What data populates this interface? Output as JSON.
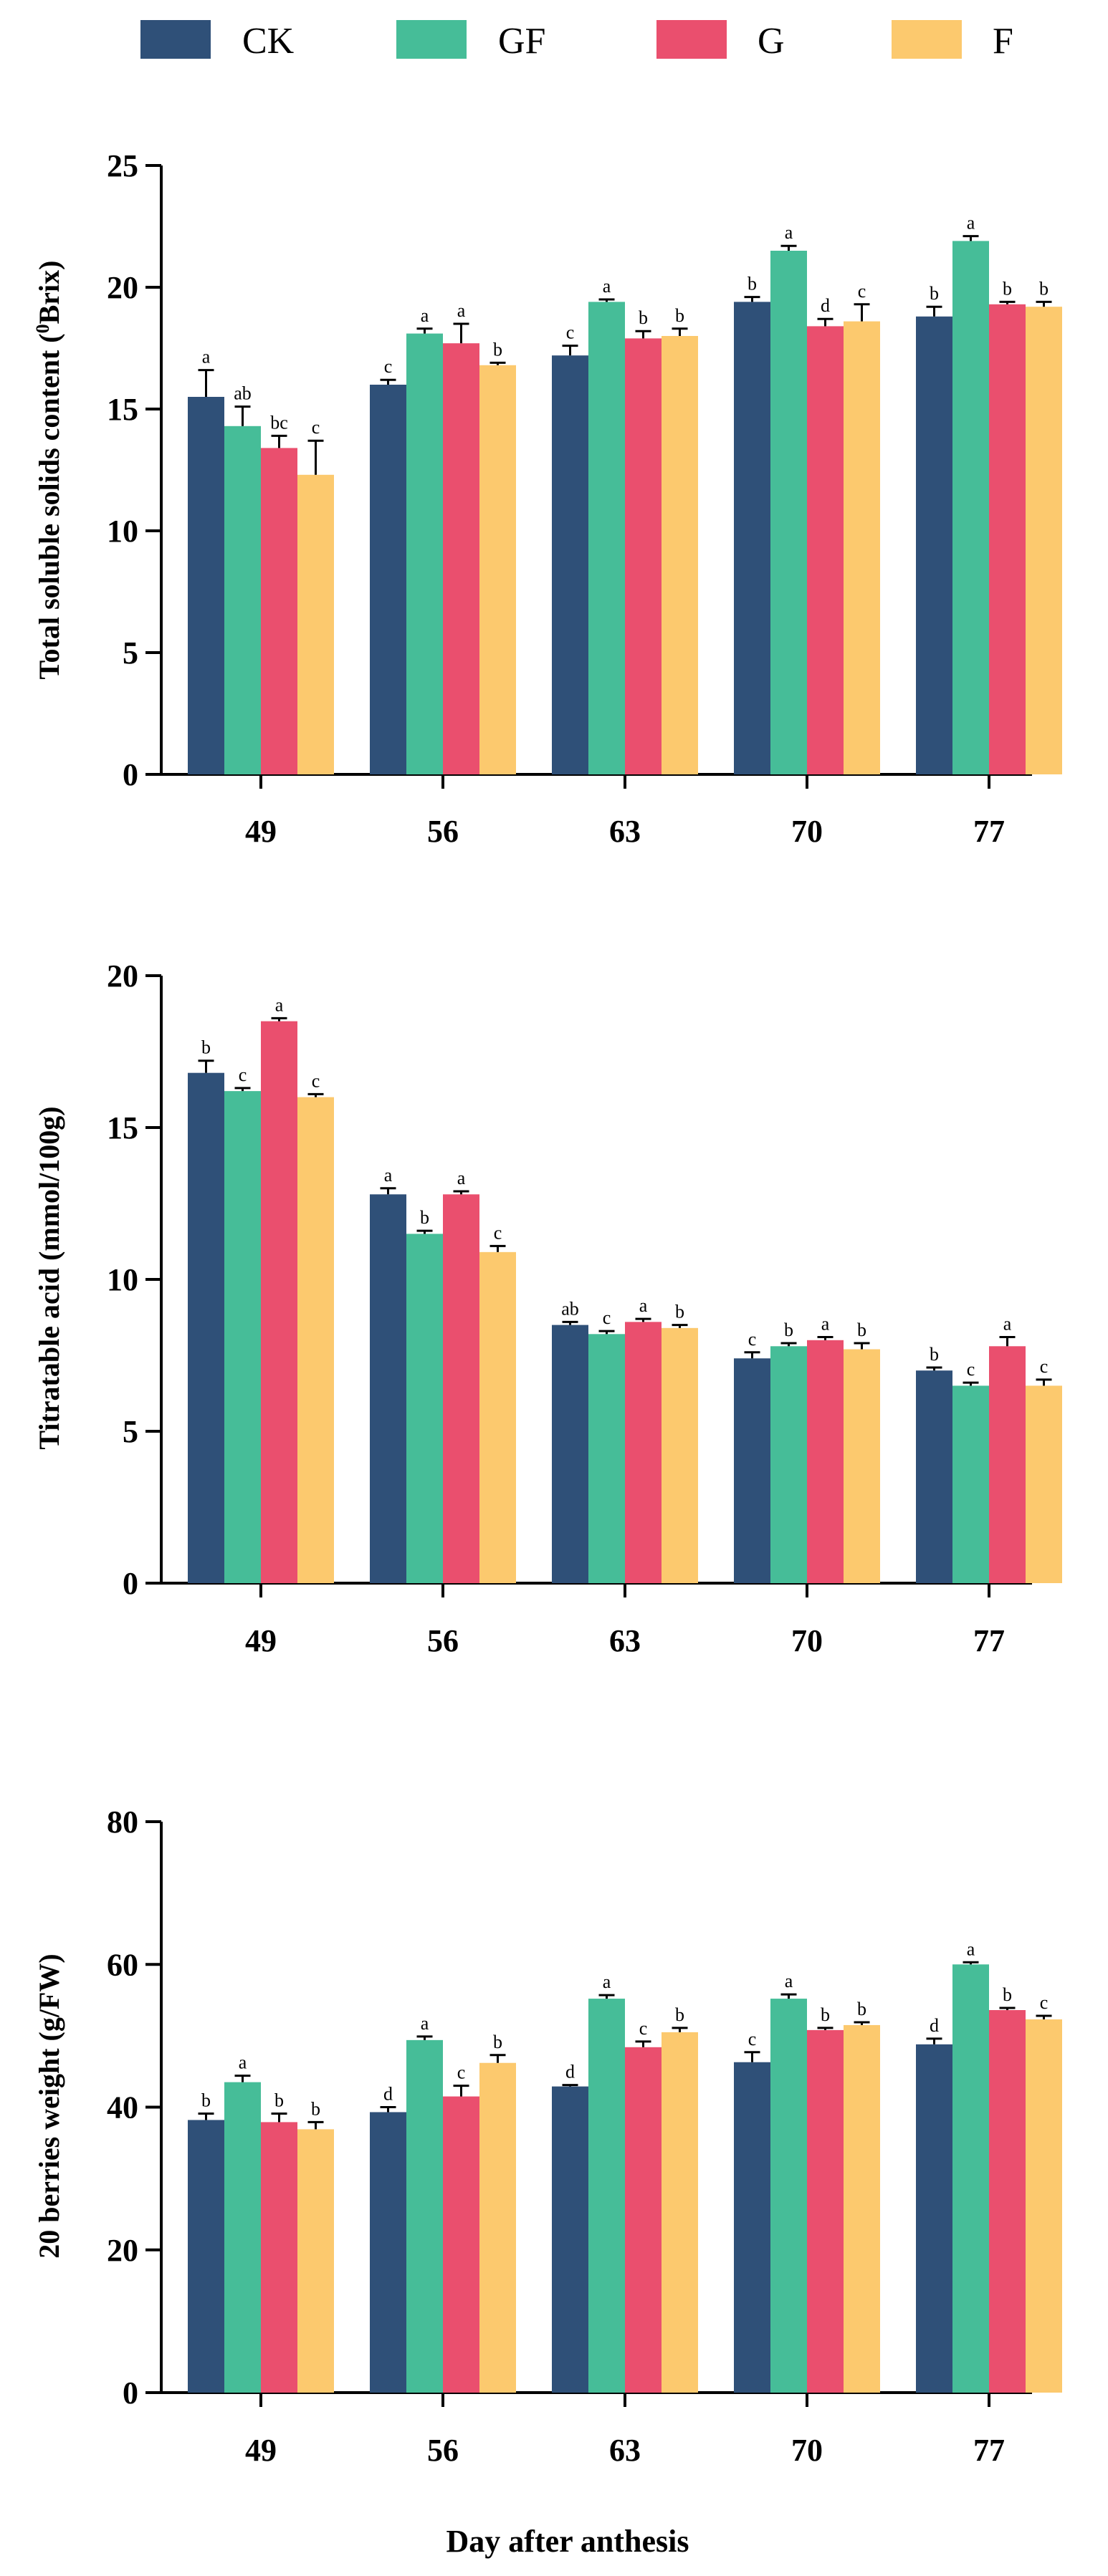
{
  "colors": {
    "CK": "#2f5078",
    "GF": "#46bd98",
    "G": "#ea4f6e",
    "F": "#fcc96e"
  },
  "legend": [
    "CK",
    "GF",
    "G",
    "F"
  ],
  "xlabel": "Day after anthesis",
  "chart_data": [
    {
      "type": "bar",
      "ylabel_pre": "Total soluble solids content (",
      "ylabel_sup": "0",
      "ylabel_post": "Brix)",
      "ylim": [
        0,
        25
      ],
      "yticks": [
        0,
        5,
        10,
        15,
        20,
        25
      ],
      "categories": [
        "49",
        "56",
        "63",
        "70",
        "77"
      ],
      "series": [
        {
          "name": "CK",
          "values": [
            15.5,
            16.0,
            17.2,
            19.4,
            18.8
          ],
          "errors": [
            1.1,
            0.2,
            0.4,
            0.2,
            0.4
          ],
          "labels": [
            "a",
            "c",
            "c",
            "b",
            "b"
          ]
        },
        {
          "name": "GF",
          "values": [
            14.3,
            18.1,
            19.4,
            21.5,
            21.9
          ],
          "errors": [
            0.8,
            0.2,
            0.1,
            0.2,
            0.2
          ],
          "labels": [
            "ab",
            "a",
            "a",
            "a",
            "a"
          ]
        },
        {
          "name": "G",
          "values": [
            13.4,
            17.7,
            17.9,
            18.4,
            19.3
          ],
          "errors": [
            0.5,
            0.8,
            0.3,
            0.3,
            0.1
          ],
          "labels": [
            "bc",
            "a",
            "b",
            "d",
            "b"
          ]
        },
        {
          "name": "F",
          "values": [
            12.3,
            16.8,
            18.0,
            18.6,
            19.2
          ],
          "errors": [
            1.4,
            0.1,
            0.3,
            0.7,
            0.2
          ],
          "labels": [
            "c",
            "b",
            "b",
            "c",
            "b"
          ]
        }
      ]
    },
    {
      "type": "bar",
      "ylabel": "Titratable acid (mmol/100g)",
      "ylim": [
        0,
        20
      ],
      "yticks": [
        0,
        5,
        10,
        15,
        20
      ],
      "categories": [
        "49",
        "56",
        "63",
        "70",
        "77"
      ],
      "series": [
        {
          "name": "CK",
          "values": [
            16.8,
            12.8,
            8.5,
            7.4,
            7.0
          ],
          "errors": [
            0.4,
            0.2,
            0.1,
            0.2,
            0.1
          ],
          "labels": [
            "b",
            "a",
            "ab",
            "c",
            "b"
          ]
        },
        {
          "name": "GF",
          "values": [
            16.2,
            11.5,
            8.2,
            7.8,
            6.5
          ],
          "errors": [
            0.1,
            0.1,
            0.1,
            0.1,
            0.1
          ],
          "labels": [
            "c",
            "b",
            "c",
            "b",
            "c"
          ]
        },
        {
          "name": "G",
          "values": [
            18.5,
            12.8,
            8.6,
            8.0,
            7.8
          ],
          "errors": [
            0.1,
            0.1,
            0.1,
            0.1,
            0.3
          ],
          "labels": [
            "a",
            "a",
            "a",
            "a",
            "a"
          ]
        },
        {
          "name": "F",
          "values": [
            16.0,
            10.9,
            8.4,
            7.7,
            6.5
          ],
          "errors": [
            0.1,
            0.2,
            0.1,
            0.2,
            0.2
          ],
          "labels": [
            "c",
            "c",
            "b",
            "b",
            "c"
          ]
        }
      ]
    },
    {
      "type": "bar",
      "ylabel": "20 berries weight (g/FW)",
      "ylim": [
        0,
        80
      ],
      "yticks": [
        0,
        20,
        40,
        60,
        80
      ],
      "categories": [
        "49",
        "56",
        "63",
        "70",
        "77"
      ],
      "series": [
        {
          "name": "CK",
          "values": [
            38.2,
            39.3,
            42.9,
            46.3,
            48.8
          ],
          "errors": [
            0.9,
            0.7,
            0.2,
            1.4,
            0.8
          ],
          "labels": [
            "b",
            "d",
            "d",
            "c",
            "d"
          ]
        },
        {
          "name": "GF",
          "values": [
            43.5,
            49.4,
            55.2,
            55.2,
            60.0
          ],
          "errors": [
            0.9,
            0.5,
            0.5,
            0.6,
            0.3
          ],
          "labels": [
            "a",
            "a",
            "a",
            "a",
            "a"
          ]
        },
        {
          "name": "G",
          "values": [
            37.9,
            41.5,
            48.4,
            50.8,
            53.6
          ],
          "errors": [
            1.2,
            1.5,
            0.8,
            0.3,
            0.3
          ],
          "labels": [
            "b",
            "c",
            "c",
            "b",
            "b"
          ]
        },
        {
          "name": "F",
          "values": [
            36.9,
            46.2,
            50.5,
            51.5,
            52.3
          ],
          "errors": [
            1.0,
            1.1,
            0.6,
            0.4,
            0.5
          ],
          "labels": [
            "b",
            "b",
            "b",
            "b",
            "c"
          ]
        }
      ]
    }
  ]
}
